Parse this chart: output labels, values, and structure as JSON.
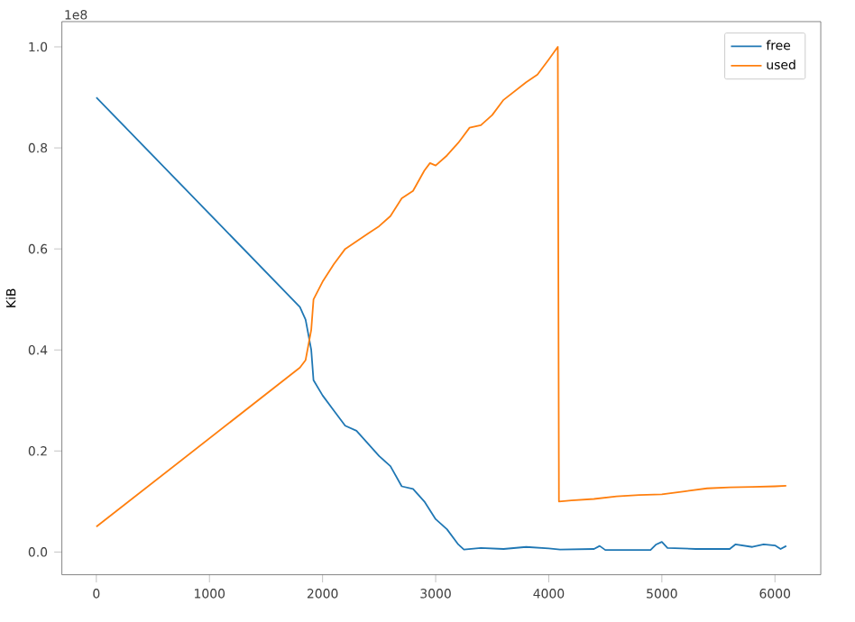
{
  "chart_data": {
    "type": "line",
    "ylabel": "KiB",
    "annotations": [
      "1e8"
    ],
    "legend": "top right",
    "grid": false,
    "xlim": [
      -305,
      6405
    ],
    "ylim": [
      -0.045,
      1.05
    ],
    "xticks": [
      0,
      1000,
      2000,
      3000,
      4000,
      5000,
      6000
    ],
    "yticks": [
      {
        "value": 0,
        "label": "0.0"
      },
      0.2,
      0.4,
      0.6,
      0.8,
      {
        "value": 1,
        "label": "1.0"
      }
    ],
    "series": [
      {
        "name": "free",
        "color": "#1f77b4",
        "x": [
          0,
          1800,
          1850,
          1900,
          1920,
          2000,
          2100,
          2200,
          2300,
          2400,
          2500,
          2600,
          2700,
          2800,
          2900,
          3000,
          3100,
          3200,
          3250,
          3400,
          3600,
          3800,
          4000,
          4100,
          4400,
          4450,
          4500,
          4900,
          4950,
          5000,
          5050,
          5300,
          5600,
          5650,
          5800,
          5900,
          6000,
          6050,
          6100
        ],
        "values": [
          0.9,
          0.485,
          0.46,
          0.4,
          0.34,
          0.31,
          0.28,
          0.25,
          0.24,
          0.215,
          0.19,
          0.17,
          0.13,
          0.125,
          0.1,
          0.065,
          0.045,
          0.015,
          0.005,
          0.008,
          0.006,
          0.01,
          0.007,
          0.005,
          0.006,
          0.012,
          0.004,
          0.004,
          0.015,
          0.02,
          0.008,
          0.006,
          0.006,
          0.015,
          0.01,
          0.015,
          0.013,
          0.006,
          0.012
        ]
      },
      {
        "name": "used",
        "color": "#ff7f0e",
        "x": [
          0,
          1800,
          1850,
          1900,
          1920,
          2000,
          2100,
          2200,
          2300,
          2400,
          2500,
          2600,
          2700,
          2800,
          2900,
          2950,
          3000,
          3100,
          3200,
          3300,
          3400,
          3500,
          3600,
          3800,
          3900,
          4000,
          4080,
          4090,
          4200,
          4400,
          4600,
          4800,
          5000,
          5200,
          5400,
          5600,
          5800,
          6000,
          6100
        ],
        "values": [
          0.05,
          0.365,
          0.38,
          0.44,
          0.5,
          0.535,
          0.57,
          0.6,
          0.615,
          0.63,
          0.645,
          0.665,
          0.7,
          0.715,
          0.755,
          0.77,
          0.765,
          0.785,
          0.81,
          0.84,
          0.845,
          0.865,
          0.895,
          0.93,
          0.945,
          0.975,
          1.0,
          0.1,
          0.102,
          0.105,
          0.11,
          0.113,
          0.114,
          0.12,
          0.126,
          0.128,
          0.129,
          0.13,
          0.131
        ]
      }
    ]
  }
}
